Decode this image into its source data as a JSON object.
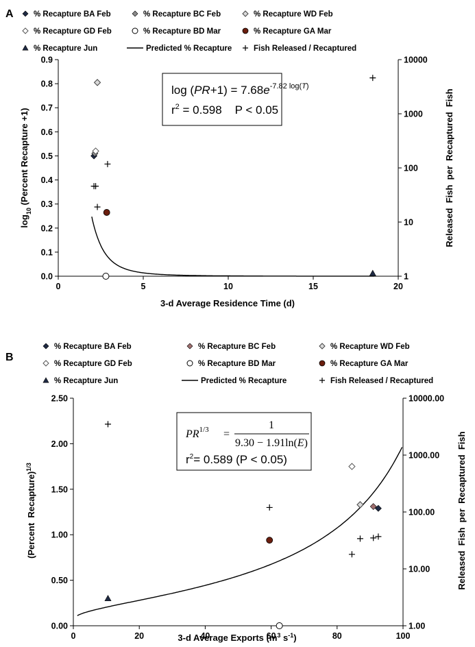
{
  "chart_data": [
    {
      "panel_label": "A",
      "type": "scatter",
      "xlabel": "3-d Average Residence Time (d)",
      "ylabel_html": "log<tspan baseline-shift=\"sub\" font-size=\"9\">10</tspan> (Percent Recapture +1)",
      "ylabel": "log10 (Percent Recapture +1)",
      "y2label": "Released  Fish  per  Recaptured  Fish",
      "xlim": [
        0,
        20
      ],
      "xticks": [
        0,
        5,
        10,
        15,
        20
      ],
      "ylim": [
        0,
        0.9
      ],
      "yticks": [
        0.0,
        0.1,
        0.2,
        0.3,
        0.4,
        0.5,
        0.6,
        0.7,
        0.8,
        0.9
      ],
      "y2lim": [
        1,
        10000
      ],
      "y2scale": "log",
      "y2ticks": [
        1,
        10,
        100,
        1000,
        10000
      ],
      "xtick_labels": [
        "0",
        "5",
        "10",
        "15",
        "20"
      ],
      "ytick_labels": [
        "0.0",
        "0.1",
        "0.2",
        "0.3",
        "0.4",
        "0.5",
        "0.6",
        "0.7",
        "0.8",
        "0.9"
      ],
      "y2tick_labels": [
        "1",
        "10",
        "100",
        "1000",
        "10000"
      ],
      "equation": {
        "line1_pre": "log (",
        "line1_italic": "PR",
        "line1_mid": "+1) = 7.68",
        "line1_e": "e",
        "line1_sup": "-7.82 log(",
        "line1_sup_italic": "T",
        "line1_sup_end": ")",
        "line2": "r",
        "line2_sup": "2",
        "line2_rest": " = 0.598    P < 0.05"
      },
      "legend": [
        [
          "% Recapture BA Feb",
          "% Recapture BC Feb",
          "% Recapture WD Feb"
        ],
        [
          "% Recapture GD Feb",
          "% Recapture BD Mar",
          "% Recapture GA Mar"
        ],
        [
          "% Recapture Jun",
          "Predicted % Recapture",
          "Fish Released / Recaptured"
        ]
      ],
      "series": [
        {
          "name": "% Recapture BA Feb",
          "marker": "diamond",
          "color": "#1f2a44",
          "points": [
            [
              2.1,
              0.5
            ]
          ]
        },
        {
          "name": "% Recapture BC Feb",
          "marker": "diamond",
          "color": "#8a8a8a",
          "points": [
            [
              2.15,
              0.51
            ]
          ]
        },
        {
          "name": "% Recapture WD Feb",
          "marker": "diamond-open-gray",
          "color": "#bdbdbd",
          "points": [
            [
              2.3,
              0.805
            ]
          ]
        },
        {
          "name": "% Recapture GD Feb",
          "marker": "diamond-open",
          "color": "#000000",
          "points": [
            [
              2.2,
              0.52
            ]
          ]
        },
        {
          "name": "% Recapture BD Mar",
          "marker": "circle-open",
          "color": "#000000",
          "points": [
            [
              2.8,
              0.0
            ]
          ]
        },
        {
          "name": "% Recapture GA Mar",
          "marker": "circle-brown",
          "color": "#6b1e0e",
          "points": [
            [
              2.85,
              0.265
            ]
          ]
        },
        {
          "name": "% Recapture Jun",
          "marker": "triangle",
          "color": "#1f2a44",
          "points": [
            [
              18.5,
              0.012
            ]
          ]
        },
        {
          "name": "Predicted % Recapture",
          "marker": "line",
          "color": "#000000",
          "model": "A"
        },
        {
          "name": "Fish Released / Recaptured",
          "marker": "plus",
          "axis": "y2",
          "color": "#000000",
          "points": [
            [
              2.1,
              46
            ],
            [
              2.2,
              46
            ],
            [
              2.3,
              19
            ],
            [
              2.9,
              118
            ],
            [
              18.5,
              4600
            ]
          ]
        }
      ]
    },
    {
      "panel_label": "B",
      "type": "scatter",
      "xlabel_pre": "3-d Average Exports (m",
      "xlabel_sup": "3",
      "xlabel_mid": " s",
      "xlabel_sup2": "-1",
      "xlabel_end": ")",
      "ylabel_pre": "(Percent  Recapture)",
      "ylabel_sup": "1/3",
      "y2label": "Released  Fish  per  Recaptured  Fish",
      "xlim": [
        0,
        100
      ],
      "xticks": [
        0,
        20,
        40,
        60,
        80,
        100
      ],
      "ylim": [
        0,
        2.5
      ],
      "yticks": [
        0.0,
        0.5,
        1.0,
        1.5,
        2.0,
        2.5
      ],
      "y2lim": [
        1,
        10000
      ],
      "y2scale": "log",
      "y2ticks": [
        1,
        10,
        100,
        1000,
        10000
      ],
      "xtick_labels": [
        "0",
        "20",
        "40",
        "60",
        "80",
        "100"
      ],
      "ytick_labels": [
        "0.00",
        "0.50",
        "1.00",
        "1.50",
        "2.00",
        "2.50"
      ],
      "y2tick_labels": [
        "1.00",
        "10.00",
        "100.00",
        "1000.00",
        "10000.00"
      ],
      "equation": {
        "lhs": "PR",
        "lhs_sup": "1/3",
        "eqsign": "=",
        "num": "1",
        "den_pre": "9.30 − 1.91ln(",
        "den_italic": "E",
        "den_end": ")",
        "line2": "r",
        "line2_sup": "2",
        "line2_rest": "= 0.589 (P < 0.05)"
      },
      "legend": [
        [
          "% Recapture BA Feb",
          "% Recapture BC Feb",
          "% Recapture WD Feb"
        ],
        [
          "% Recapture GD Feb",
          "% Recapture BD Mar",
          "% Recapture GA Mar"
        ],
        [
          "% Recapture Jun",
          "Predicted % Recapture",
          "Fish Released / Recaptured"
        ]
      ],
      "series": [
        {
          "name": "% Recapture BA Feb",
          "marker": "diamond",
          "color": "#1f2a44",
          "points": [
            [
              92.5,
              1.29
            ]
          ]
        },
        {
          "name": "% Recapture BC Feb",
          "marker": "diamond",
          "color": "#a07070",
          "points": [
            [
              91,
              1.31
            ]
          ]
        },
        {
          "name": "% Recapture WD Feb",
          "marker": "diamond-open-gray",
          "color": "#bdbdbd",
          "points": [
            [
              87,
              1.33
            ]
          ]
        },
        {
          "name": "% Recapture GD Feb",
          "marker": "diamond-open",
          "color": "#000000",
          "points": [
            [
              84.5,
              1.75
            ]
          ]
        },
        {
          "name": "% Recapture BD Mar",
          "marker": "circle-open",
          "color": "#000000",
          "points": [
            [
              62.5,
              0.0
            ]
          ]
        },
        {
          "name": "% Recapture GA Mar",
          "marker": "circle-brown",
          "color": "#6b1e0e",
          "points": [
            [
              59.5,
              0.94
            ]
          ]
        },
        {
          "name": "% Recapture Jun",
          "marker": "triangle",
          "color": "#1f2a44",
          "points": [
            [
              10.5,
              0.3
            ]
          ]
        },
        {
          "name": "Predicted % Recapture",
          "marker": "line",
          "color": "#000000",
          "model": "B"
        },
        {
          "name": "Fish Released / Recaptured",
          "marker": "plus",
          "axis": "y2",
          "color": "#000000",
          "points": [
            [
              10.5,
              3500
            ],
            [
              59.5,
              120
            ],
            [
              84.5,
              18
            ],
            [
              87,
              34
            ],
            [
              91,
              35
            ],
            [
              92.5,
              37
            ]
          ]
        }
      ]
    }
  ]
}
